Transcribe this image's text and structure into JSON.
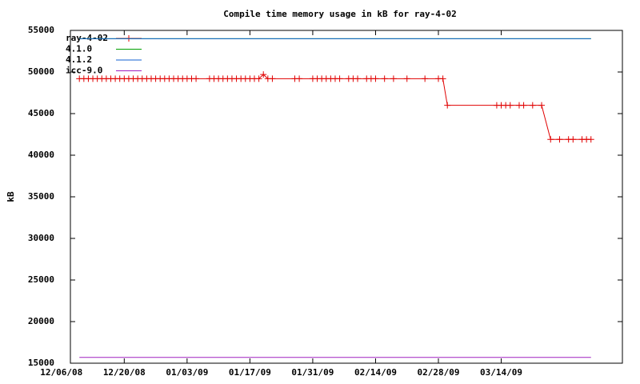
{
  "chart_data": {
    "type": "line",
    "title": "Compile time memory usage in kB for ray-4-02",
    "y_label": "kB",
    "xlim": [
      "12/08/08",
      "04/10/09"
    ],
    "xticks": [
      "12/06/08",
      "12/20/08",
      "01/03/09",
      "01/17/09",
      "01/31/09",
      "02/14/09",
      "02/28/09",
      "03/14/09"
    ],
    "ylim": [
      15000,
      55000
    ],
    "yticks": [
      15000,
      20000,
      25000,
      30000,
      35000,
      40000,
      45000,
      50000,
      55000
    ],
    "legend": "top-left",
    "series": [
      {
        "name": "ray-4-02",
        "color": "#e00000",
        "marker": "+",
        "x": [
          "12/10/08",
          "12/11/08",
          "12/12/08",
          "12/13/08",
          "12/14/08",
          "12/15/08",
          "12/16/08",
          "12/17/08",
          "12/18/08",
          "12/19/08",
          "12/20/08",
          "12/21/08",
          "12/22/08",
          "12/23/08",
          "12/24/08",
          "12/25/08",
          "12/26/08",
          "12/27/08",
          "12/28/08",
          "12/29/08",
          "12/30/08",
          "12/31/08",
          "01/01/09",
          "01/02/09",
          "01/03/09",
          "01/04/09",
          "01/05/09",
          "01/08/09",
          "01/09/09",
          "01/10/09",
          "01/11/09",
          "01/12/09",
          "01/13/09",
          "01/14/09",
          "01/15/09",
          "01/16/09",
          "01/17/09",
          "01/18/09",
          "01/19/09",
          "01/20/09",
          "01/21/09",
          "01/22/09",
          "01/27/09",
          "01/28/09",
          "01/31/09",
          "02/01/09",
          "02/02/09",
          "02/03/09",
          "02/04/09",
          "02/05/09",
          "02/06/09",
          "02/08/09",
          "02/09/09",
          "02/10/09",
          "02/12/09",
          "02/13/09",
          "02/14/09",
          "02/16/09",
          "02/18/09",
          "02/21/09",
          "02/25/09",
          "02/28/09",
          "03/01/09",
          "03/02/09",
          "03/13/09",
          "03/14/09",
          "03/15/09",
          "03/16/09",
          "03/18/09",
          "03/19/09",
          "03/21/09",
          "03/23/09",
          "03/25/09",
          "03/27/09",
          "03/29/09",
          "03/30/09",
          "04/01/09",
          "04/02/09",
          "04/03/09"
        ],
        "values": [
          49200,
          49200,
          49200,
          49200,
          49200,
          49200,
          49200,
          49200,
          49200,
          49200,
          49200,
          49200,
          49200,
          49200,
          49200,
          49200,
          49200,
          49200,
          49200,
          49200,
          49200,
          49200,
          49200,
          49200,
          49200,
          49200,
          49200,
          49200,
          49200,
          49200,
          49200,
          49200,
          49200,
          49200,
          49200,
          49200,
          49200,
          49200,
          49200,
          49700,
          49200,
          49200,
          49200,
          49200,
          49200,
          49200,
          49200,
          49200,
          49200,
          49200,
          49200,
          49200,
          49200,
          49200,
          49200,
          49200,
          49200,
          49200,
          49200,
          49200,
          49200,
          49200,
          49200,
          46000,
          46000,
          46000,
          46000,
          46000,
          46000,
          46000,
          46000,
          46000,
          41900,
          41900,
          41900,
          41900,
          41900,
          41900,
          41900
        ]
      },
      {
        "name": "4.1.0",
        "color": "#00a000",
        "x": [
          "12/10/08",
          "04/03/09"
        ],
        "values": [
          54000,
          54000
        ]
      },
      {
        "name": "4.1.2",
        "color": "#1060d0",
        "x": [
          "12/10/08",
          "04/03/09"
        ],
        "values": [
          54000,
          54000
        ]
      },
      {
        "name": "icc-9.0",
        "color": "#a020c0",
        "x": [
          "12/10/08",
          "04/03/09"
        ],
        "values": [
          15700,
          15700
        ]
      }
    ]
  }
}
